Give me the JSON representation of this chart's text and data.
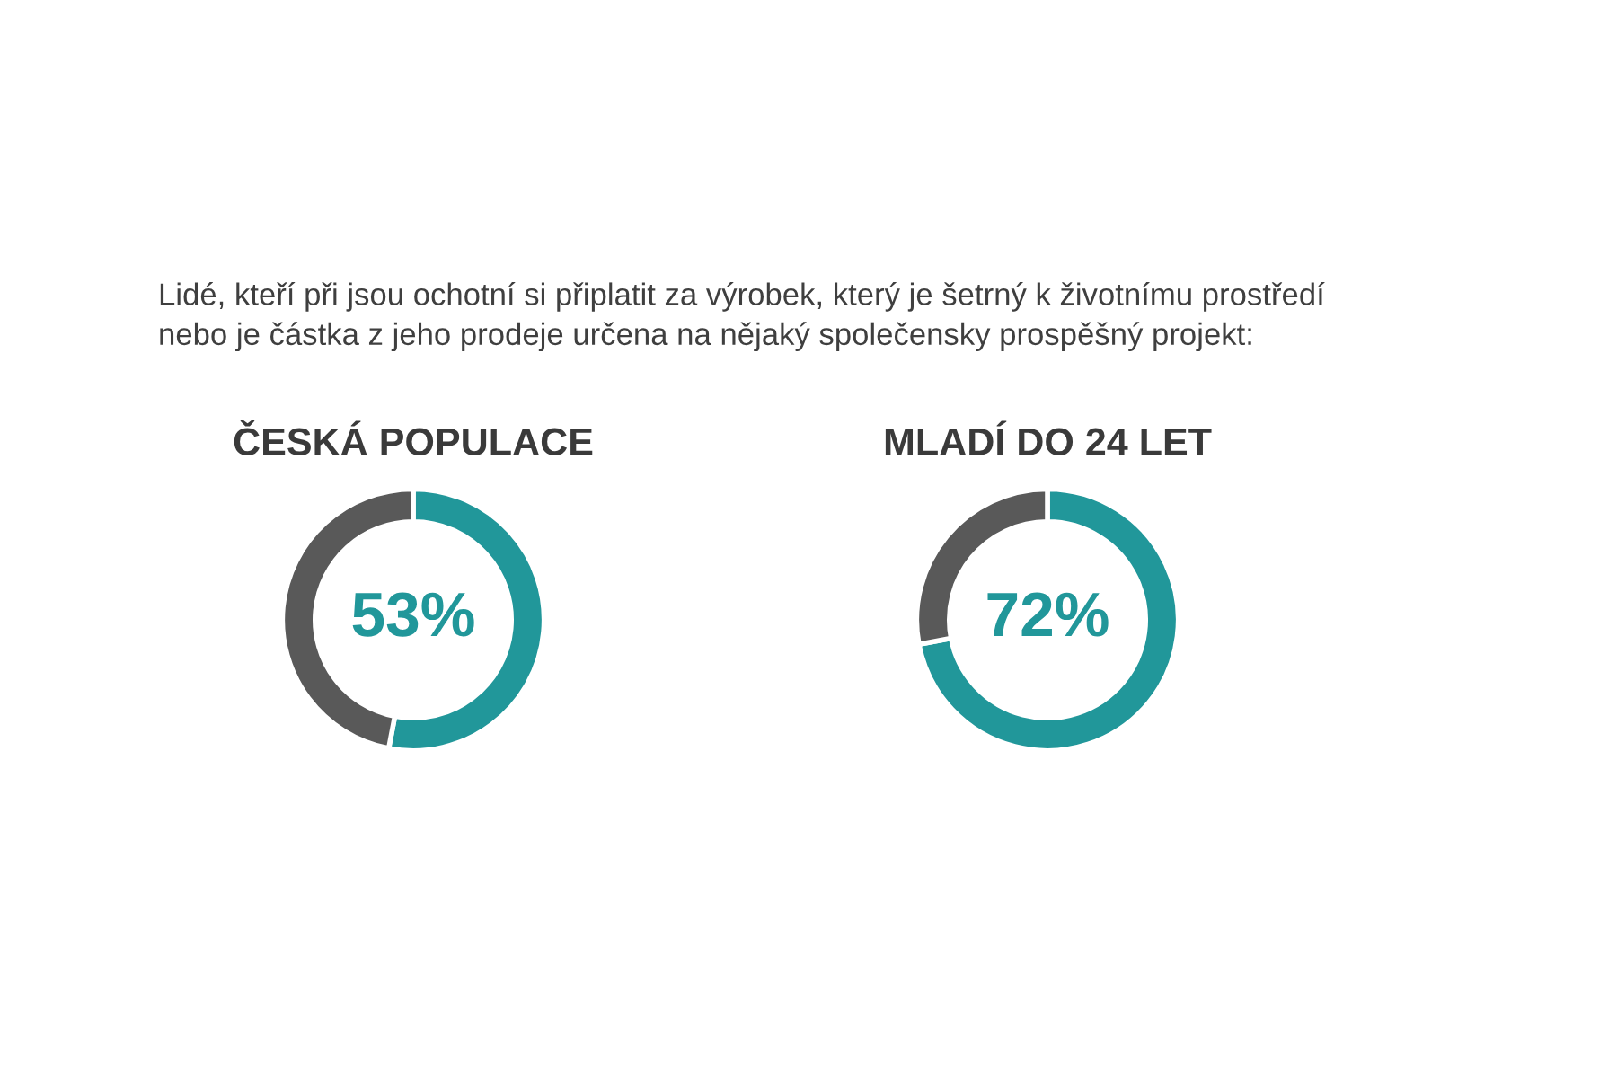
{
  "chart_data": [
    {
      "type": "donut",
      "title": "ČESKÁ POPULACE",
      "annotations": [
        "Lidé, kteří při jsou ochotní si připlatit za výrobek, který je šetrný k životnímu prostředí\nnebo je částka z jeho prodeje určena na nějaký společensky prospěšný projekt:"
      ],
      "categories": [
        null,
        null
      ],
      "values": [
        53,
        47
      ],
      "colors": [
        "#21979a",
        "#595959"
      ],
      "value_labels": [
        "53%",
        null
      ]
    },
    {
      "type": "donut",
      "title": "MLADÍ DO 24 LET",
      "categories": [
        null,
        null
      ],
      "values": [
        72,
        28
      ],
      "colors": [
        "#21979a",
        "#595959"
      ],
      "value_labels": [
        "72%",
        null
      ]
    }
  ]
}
